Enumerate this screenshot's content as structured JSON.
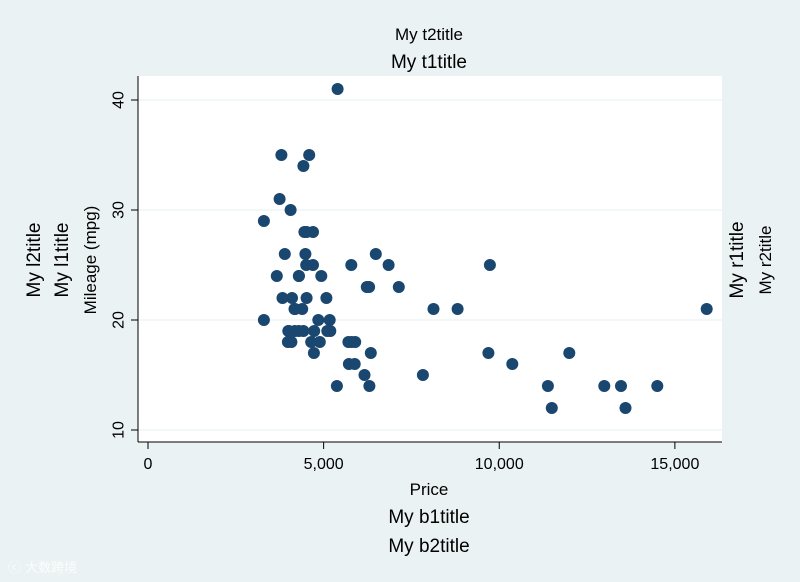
{
  "chart_data": {
    "type": "scatter",
    "titles": {
      "t2": "My t2title",
      "t1": "My t1title",
      "b1": "My b1title",
      "b2": "My b2title",
      "l2": "My l2title",
      "l1": "My l1title",
      "r1": "My r1title",
      "r2": "My r2title"
    },
    "xlabel": "Price",
    "ylabel": "Mileage (mpg)",
    "xlim": [
      0,
      16000
    ],
    "ylim": [
      10,
      41
    ],
    "xticks": [
      0,
      5000,
      10000,
      15000
    ],
    "xtick_labels": [
      "0",
      "5,000",
      "10,000",
      "15,000"
    ],
    "yticks": [
      10,
      20,
      30,
      40
    ],
    "ytick_labels": [
      "10",
      "20",
      "30",
      "40"
    ],
    "grid": "horizontal",
    "legend": "none",
    "marker_color": "#1a476f",
    "plot_background": "#ffffff",
    "figure_background": "#eaf2f3",
    "points": [
      [
        5397,
        41
      ],
      [
        3798,
        35
      ],
      [
        4589,
        35
      ],
      [
        4425,
        34
      ],
      [
        3748,
        31
      ],
      [
        3299,
        29
      ],
      [
        4060,
        30
      ],
      [
        4453,
        28
      ],
      [
        4697,
        28
      ],
      [
        4516,
        28
      ],
      [
        3895,
        26
      ],
      [
        4482,
        26
      ],
      [
        6486,
        26
      ],
      [
        3667,
        24
      ],
      [
        4296,
        24
      ],
      [
        4296,
        24
      ],
      [
        4934,
        24
      ],
      [
        4504,
        25
      ],
      [
        4697,
        25
      ],
      [
        5788,
        25
      ],
      [
        6850,
        25
      ],
      [
        9735,
        25
      ],
      [
        3829,
        22
      ],
      [
        4099,
        22
      ],
      [
        4516,
        22
      ],
      [
        5079,
        22
      ],
      [
        6229,
        23
      ],
      [
        6295,
        23
      ],
      [
        7140,
        23
      ],
      [
        3995,
        19
      ],
      [
        4172,
        21
      ],
      [
        4389,
        21
      ],
      [
        4187,
        21
      ],
      [
        8129,
        21
      ],
      [
        8814,
        21
      ],
      [
        15906,
        21
      ],
      [
        3299,
        20
      ],
      [
        4849,
        20
      ],
      [
        5172,
        20
      ],
      [
        3984,
        18
      ],
      [
        4010,
        19
      ],
      [
        4181,
        19
      ],
      [
        4296,
        19
      ],
      [
        4424,
        19
      ],
      [
        4733,
        19
      ],
      [
        5104,
        19
      ],
      [
        5189,
        19
      ],
      [
        4082,
        18
      ],
      [
        4647,
        18
      ],
      [
        4890,
        18
      ],
      [
        5705,
        18
      ],
      [
        5798,
        18
      ],
      [
        5899,
        18
      ],
      [
        4723,
        17
      ],
      [
        6342,
        17
      ],
      [
        9690,
        17
      ],
      [
        11995,
        17
      ],
      [
        5719,
        16
      ],
      [
        5886,
        16
      ],
      [
        10371,
        16
      ],
      [
        6165,
        15
      ],
      [
        7827,
        15
      ],
      [
        5379,
        14
      ],
      [
        6303,
        14
      ],
      [
        11385,
        14
      ],
      [
        12990,
        14
      ],
      [
        13466,
        14
      ],
      [
        14500,
        14
      ],
      [
        11497,
        12
      ],
      [
        13594,
        12
      ]
    ]
  },
  "watermark": "大数跨境"
}
